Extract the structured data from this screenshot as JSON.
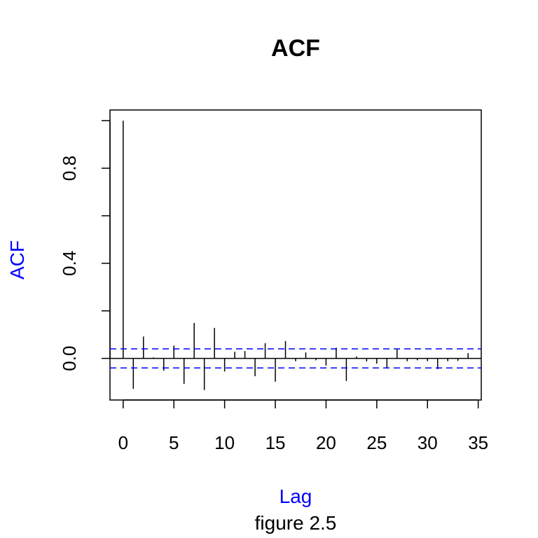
{
  "chart_data": {
    "type": "bar",
    "title": "ACF",
    "xlabel": "Lag",
    "ylabel": "ACF",
    "caption": "figure 2.5",
    "xlim": [
      -1.3,
      35.3
    ],
    "ylim": [
      -0.175,
      1.045
    ],
    "x_ticks": [
      0,
      5,
      10,
      15,
      20,
      25,
      30,
      35
    ],
    "x_tick_labels": [
      "0",
      "5",
      "10",
      "15",
      "20",
      "25",
      "30",
      "35"
    ],
    "y_ticks": [
      0.0,
      0.2,
      0.4,
      0.6,
      0.8,
      1.0
    ],
    "y_tick_labels": [
      "0.0",
      "",
      "0.4",
      "",
      "0.8",
      ""
    ],
    "lags": [
      0,
      1,
      2,
      3,
      4,
      5,
      6,
      7,
      8,
      9,
      10,
      11,
      12,
      13,
      14,
      15,
      16,
      17,
      18,
      19,
      20,
      21,
      22,
      23,
      24,
      25,
      26,
      27,
      28,
      29,
      30,
      31,
      32,
      33,
      34
    ],
    "acf": [
      1.0,
      -0.128,
      0.092,
      0.004,
      -0.052,
      0.054,
      -0.107,
      0.149,
      -0.133,
      0.128,
      -0.055,
      0.028,
      0.031,
      -0.075,
      0.064,
      -0.098,
      0.073,
      -0.012,
      0.025,
      -0.008,
      -0.03,
      0.045,
      -0.095,
      0.008,
      -0.013,
      -0.022,
      -0.04,
      0.038,
      -0.012,
      -0.008,
      -0.012,
      -0.045,
      -0.012,
      -0.01,
      0.022
    ],
    "confidence_band": [
      0.04,
      -0.04
    ],
    "colors": {
      "series": "#000000",
      "confidence": "#0000ff",
      "axis_labels": "#0000ff"
    },
    "grid": false
  }
}
